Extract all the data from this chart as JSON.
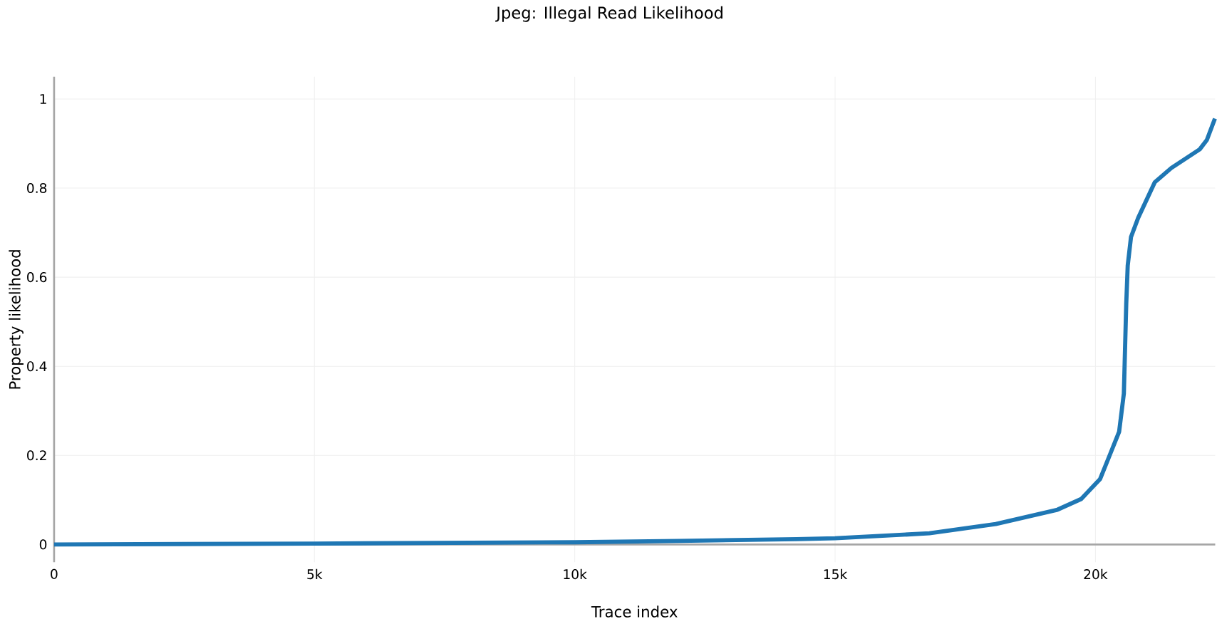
{
  "chart_data": {
    "type": "line",
    "title": "Jpeg: Illegal Read Likelihood",
    "xlabel": "Trace index",
    "ylabel": "Property likelihood",
    "x": [
      0,
      5000,
      10000,
      12000,
      14262,
      15000,
      16812,
      18087,
      19271,
      19727,
      20090,
      20273,
      20455,
      20546,
      20592,
      20620,
      20683,
      20820,
      21139,
      21457,
      22003,
      22140,
      22295
    ],
    "series": [
      {
        "color": "#1f77b4",
        "values": [
          0.0,
          0.002,
          0.005,
          0.008,
          0.012,
          0.014,
          0.025,
          0.046,
          0.078,
          0.102,
          0.147,
          0.2,
          0.253,
          0.339,
          0.541,
          0.626,
          0.69,
          0.733,
          0.813,
          0.845,
          0.887,
          0.908,
          0.956
        ]
      }
    ],
    "xlim": [
      0,
      22300
    ],
    "ylim": [
      -0.04,
      1.05
    ],
    "xticks": [
      0,
      {
        "value": 5000,
        "label": "5k"
      },
      {
        "value": 10000,
        "label": "10k"
      },
      {
        "value": 15000,
        "label": "15k"
      },
      {
        "value": 20000,
        "label": "20k"
      }
    ],
    "yticks": [
      0,
      0.2,
      0.4,
      0.6,
      0.8,
      1
    ],
    "grid": true,
    "marker": "none",
    "line_style": "solid"
  }
}
